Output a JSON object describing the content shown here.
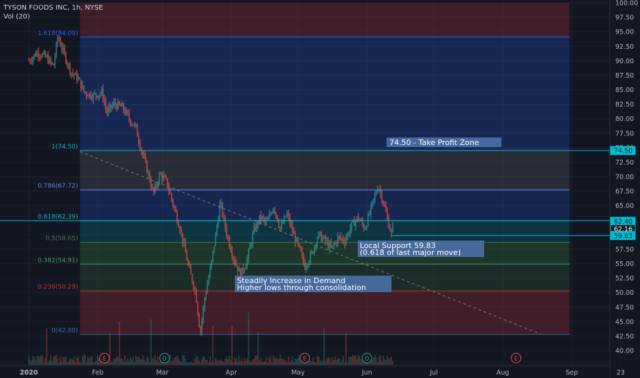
{
  "header": {
    "symbol_line": "TYSON FOODS INC, 1h, NYSE",
    "volume_label": "Vol (20)"
  },
  "colors": {
    "background": "#131722",
    "up": "#26a69a",
    "down": "#ef5350",
    "axis_text": "#b2b5be",
    "tag": "#00bcd4"
  },
  "chart_data": {
    "type": "candlestick",
    "y_axis": {
      "min": 40,
      "max": 100,
      "ticks": [
        100.0,
        97.5,
        95.0,
        92.5,
        90.0,
        87.5,
        85.0,
        82.5,
        80.0,
        77.5,
        75.0,
        72.5,
        70.0,
        67.5,
        65.0,
        62.5,
        60.0,
        57.5,
        55.0,
        52.5,
        50.0,
        47.5,
        45.0,
        42.5,
        40.0
      ]
    },
    "x_axis": {
      "labels": [
        "2020",
        "Feb",
        "Mar",
        "Apr",
        "May",
        "Jun",
        "Jul",
        "Aug",
        "Sep",
        "23"
      ]
    },
    "price_tags": [
      {
        "value": 74.5,
        "label": "74.50"
      },
      {
        "value": 62.4,
        "label": "62.40"
      },
      {
        "value": 62.16,
        "label": "62.16"
      },
      {
        "value": 59.83,
        "label": "59.83"
      }
    ],
    "fib_levels": [
      {
        "ratio": "1.618",
        "price": 94.09,
        "label": "1.618(94.09)"
      },
      {
        "ratio": "1",
        "price": 74.5,
        "label": "1(74.50)"
      },
      {
        "ratio": "0.786",
        "price": 67.72,
        "label": "0.786(67.72)"
      },
      {
        "ratio": "0.618",
        "price": 62.39,
        "label": "0.618(62.39)"
      },
      {
        "ratio": "0.5",
        "price": 58.65,
        "label": "0.5(58.65)"
      },
      {
        "ratio": "0.382",
        "price": 54.91,
        "label": "0.382(54.91)"
      },
      {
        "ratio": "0.236",
        "price": 50.29,
        "label": "0.236(50.29)"
      },
      {
        "ratio": "0",
        "price": 42.8,
        "label": "0(42.80)"
      }
    ],
    "annotations": [
      {
        "text": "74.50 - Take Profit Zone"
      },
      {
        "text": "Local Support 59.83"
      },
      {
        "text": "(0.618 of last major move)"
      },
      {
        "text": "Steadily Increase in Demand"
      },
      {
        "text": "Higher lows through consolidation"
      }
    ],
    "events": [
      {
        "label": "E",
        "kind": "earnings"
      },
      {
        "label": "D",
        "kind": "dividend"
      },
      {
        "label": "E",
        "kind": "earnings"
      },
      {
        "label": "D",
        "kind": "dividend"
      },
      {
        "label": "E",
        "kind": "earnings"
      }
    ],
    "price_path": [
      {
        "date": "2020-01-01",
        "price": 90.0
      },
      {
        "date": "2020-01-05",
        "price": 91.5
      },
      {
        "date": "2020-01-09",
        "price": 90.5
      },
      {
        "date": "2020-01-12",
        "price": 89.0
      },
      {
        "date": "2020-01-14",
        "price": 94.1
      },
      {
        "date": "2020-01-17",
        "price": 91.0
      },
      {
        "date": "2020-01-20",
        "price": 88.0
      },
      {
        "date": "2020-01-23",
        "price": 87.0
      },
      {
        "date": "2020-01-26",
        "price": 84.5
      },
      {
        "date": "2020-01-30",
        "price": 84.0
      },
      {
        "date": "2020-02-03",
        "price": 84.5
      },
      {
        "date": "2020-02-05",
        "price": 81.0
      },
      {
        "date": "2020-02-08",
        "price": 82.5
      },
      {
        "date": "2020-02-12",
        "price": 82.0
      },
      {
        "date": "2020-02-15",
        "price": 80.0
      },
      {
        "date": "2020-02-18",
        "price": 78.5
      },
      {
        "date": "2020-02-21",
        "price": 74.0
      },
      {
        "date": "2020-02-24",
        "price": 70.0
      },
      {
        "date": "2020-02-26",
        "price": 67.0
      },
      {
        "date": "2020-02-29",
        "price": 70.5
      },
      {
        "date": "2020-03-03",
        "price": 69.0
      },
      {
        "date": "2020-03-06",
        "price": 65.0
      },
      {
        "date": "2020-03-09",
        "price": 61.0
      },
      {
        "date": "2020-03-11",
        "price": 57.5
      },
      {
        "date": "2020-03-13",
        "price": 54.0
      },
      {
        "date": "2020-03-16",
        "price": 50.0
      },
      {
        "date": "2020-03-18",
        "price": 43.0
      },
      {
        "date": "2020-03-20",
        "price": 49.0
      },
      {
        "date": "2020-03-23",
        "price": 55.0
      },
      {
        "date": "2020-03-25",
        "price": 60.0
      },
      {
        "date": "2020-03-27",
        "price": 65.5
      },
      {
        "date": "2020-03-30",
        "price": 60.0
      },
      {
        "date": "2020-04-02",
        "price": 56.0
      },
      {
        "date": "2020-04-05",
        "price": 53.0
      },
      {
        "date": "2020-04-08",
        "price": 55.5
      },
      {
        "date": "2020-04-11",
        "price": 60.5
      },
      {
        "date": "2020-04-14",
        "price": 63.0
      },
      {
        "date": "2020-04-17",
        "price": 62.0
      },
      {
        "date": "2020-04-20",
        "price": 65.0
      },
      {
        "date": "2020-04-23",
        "price": 61.0
      },
      {
        "date": "2020-04-26",
        "price": 63.5
      },
      {
        "date": "2020-04-29",
        "price": 60.0
      },
      {
        "date": "2020-05-02",
        "price": 57.0
      },
      {
        "date": "2020-05-04",
        "price": 54.5
      },
      {
        "date": "2020-05-07",
        "price": 56.5
      },
      {
        "date": "2020-05-10",
        "price": 60.0
      },
      {
        "date": "2020-05-13",
        "price": 59.0
      },
      {
        "date": "2020-05-16",
        "price": 57.5
      },
      {
        "date": "2020-05-19",
        "price": 59.5
      },
      {
        "date": "2020-05-22",
        "price": 59.0
      },
      {
        "date": "2020-05-25",
        "price": 61.5
      },
      {
        "date": "2020-05-28",
        "price": 63.0
      },
      {
        "date": "2020-05-31",
        "price": 61.0
      },
      {
        "date": "2020-06-02",
        "price": 63.5
      },
      {
        "date": "2020-06-04",
        "price": 66.0
      },
      {
        "date": "2020-06-06",
        "price": 68.5
      },
      {
        "date": "2020-06-08",
        "price": 66.0
      },
      {
        "date": "2020-06-10",
        "price": 63.0
      },
      {
        "date": "2020-06-12",
        "price": 60.0
      },
      {
        "date": "2020-06-13",
        "price": 62.2
      }
    ]
  }
}
